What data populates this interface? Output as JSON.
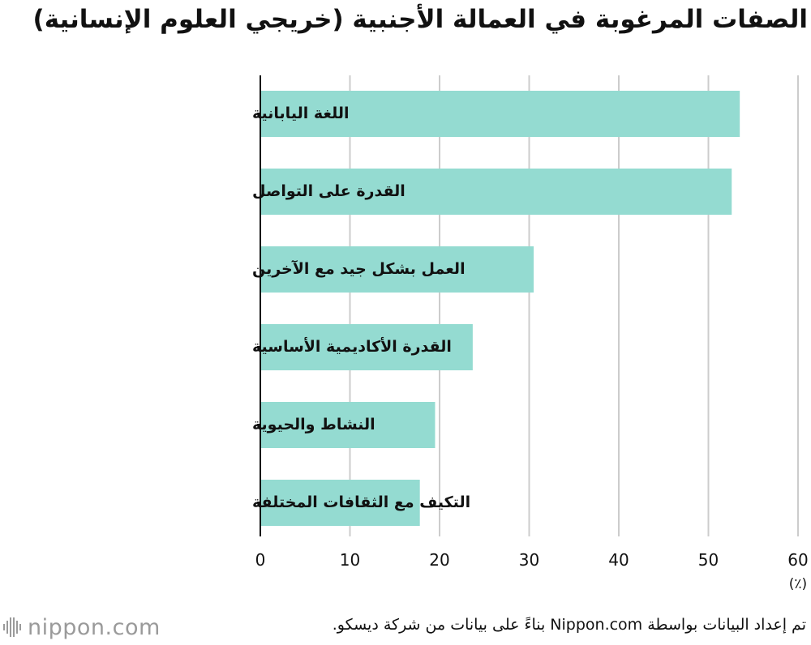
{
  "header": {
    "title": "الصفات المرغوبة في العمالة الأجنبية (خريجي العلوم الإنسانية)"
  },
  "chart_data": {
    "type": "bar",
    "orientation": "horizontal",
    "title": "الصفات المرغوبة في العمالة الأجنبية (خريجي العلوم الإنسانية)",
    "categories": [
      "اللغة اليابانية",
      "القدرة على التواصل",
      "العمل بشكل جيد مع الآخرين",
      "القدرة الأكاديمية الأساسية",
      "النشاط والحيوية",
      "التكيف مع الثقافات المختلفة"
    ],
    "values": [
      53.5,
      52.6,
      30.5,
      23.7,
      19.5,
      17.8
    ],
    "xlim": [
      0,
      60
    ],
    "xticks": [
      0,
      10,
      20,
      30,
      40,
      50,
      60
    ],
    "xticklabels": [
      "0",
      "10",
      "20",
      "30",
      "40",
      "50",
      "60"
    ],
    "xlabel": "(٪)",
    "ylabel": "",
    "grid": true,
    "bar_color": "#94dbd1",
    "grid_color": "#cccccc",
    "axis_color": "#111111"
  },
  "footer": {
    "logo_text": "nippon.com",
    "logo_icon": "nippon-logo-bars-icon",
    "source": "تم إعداد البيانات بواسطة Nippon.com بناءً على بيانات من شركة ديسكو."
  }
}
